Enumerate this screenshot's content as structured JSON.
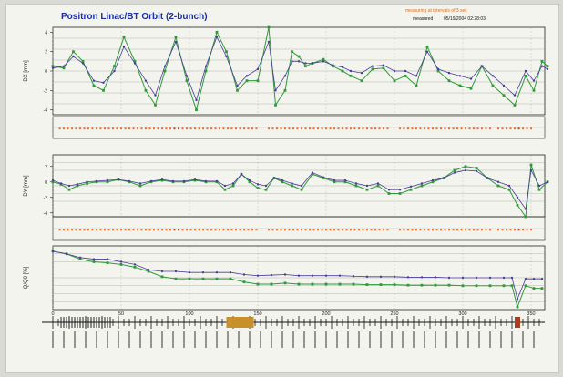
{
  "header": {
    "title": "Positron  Linac/BT  Orbit  (2-bunch)",
    "note": "measuring at intervals of 3 sec",
    "measured_label": "measured",
    "timestamp": "05/19/2004 02:28:03"
  },
  "colors": {
    "series_a": "#2e9a3a",
    "series_b": "#4a3d9a",
    "status": "#f07030",
    "status_alt": "#c84020",
    "grid": "#9a9a9a",
    "axis": "#222222"
  },
  "chart_data": [
    {
      "type": "line",
      "panel": "dx",
      "ylabel": "DX [mm]",
      "ylim": [
        -4.5,
        4.5
      ],
      "yticks": [
        -4,
        -2,
        0,
        2,
        4
      ],
      "xlim": [
        0,
        360
      ],
      "grid": true,
      "series": [
        {
          "color": "green",
          "x": [
            0,
            8,
            15,
            22,
            30,
            37,
            45,
            52,
            60,
            68,
            75,
            82,
            90,
            98,
            105,
            112,
            120,
            127,
            135,
            142,
            150,
            158,
            163,
            170,
            175,
            180,
            185,
            190,
            198,
            205,
            212,
            218,
            226,
            234,
            242,
            250,
            258,
            266,
            274,
            282,
            290,
            298,
            306,
            314,
            322,
            330,
            338,
            346,
            352,
            358,
            362
          ],
          "y": [
            0.5,
            0.3,
            2,
            1,
            -1.5,
            -2,
            0.5,
            3.5,
            1,
            -2,
            -3.5,
            0,
            3.5,
            -1,
            -4,
            0,
            4,
            2,
            -2,
            -1,
            -1,
            4.5,
            -3.5,
            -2,
            2,
            1.5,
            0.5,
            0.8,
            1.2,
            0.5,
            0,
            -0.5,
            -1,
            0.2,
            0.3,
            -1,
            -0.5,
            -1.5,
            2.5,
            0,
            -1,
            -1.5,
            -1.8,
            0.5,
            -1.5,
            -2.5,
            -3.5,
            -0.5,
            -2,
            1,
            0.5
          ]
        },
        {
          "color": "purple",
          "x": [
            0,
            8,
            15,
            22,
            30,
            37,
            45,
            52,
            60,
            68,
            75,
            82,
            90,
            98,
            105,
            112,
            120,
            127,
            135,
            142,
            150,
            158,
            163,
            170,
            175,
            180,
            185,
            190,
            198,
            205,
            212,
            218,
            226,
            234,
            242,
            250,
            258,
            266,
            274,
            282,
            290,
            298,
            306,
            314,
            322,
            330,
            338,
            346,
            352,
            358,
            362
          ],
          "y": [
            0.3,
            0.5,
            1.5,
            0.8,
            -1,
            -1.2,
            0,
            2.5,
            0.8,
            -1,
            -2.5,
            0.5,
            3,
            -0.5,
            -3,
            0.5,
            3.5,
            1.5,
            -1.5,
            -0.5,
            0.2,
            3,
            -2,
            -0.5,
            1,
            1,
            0.8,
            0.8,
            1,
            0.6,
            0.4,
            0,
            -0.2,
            0.5,
            0.6,
            0,
            0,
            -0.5,
            2,
            0.2,
            -0.2,
            -0.5,
            -0.8,
            0.5,
            -0.5,
            -1.5,
            -2.5,
            0,
            -1,
            0.5,
            0.2
          ]
        }
      ]
    },
    {
      "type": "line",
      "panel": "dy",
      "ylabel": "DY [mm]",
      "ylim": [
        -4.5,
        3.5
      ],
      "yticks": [
        -4,
        -2,
        0,
        2
      ],
      "xlim": [
        0,
        360
      ],
      "grid": true,
      "series": [
        {
          "color": "green",
          "x": [
            0,
            6,
            12,
            18,
            25,
            32,
            40,
            48,
            56,
            64,
            72,
            80,
            88,
            96,
            104,
            112,
            120,
            126,
            132,
            138,
            144,
            150,
            156,
            162,
            168,
            175,
            182,
            190,
            198,
            206,
            214,
            222,
            230,
            238,
            246,
            254,
            262,
            270,
            278,
            286,
            294,
            302,
            310,
            318,
            326,
            334,
            340,
            346,
            350,
            356,
            362
          ],
          "y": [
            0,
            -0.3,
            -1,
            -0.5,
            -0.2,
            0,
            0,
            0.3,
            0,
            -0.5,
            0,
            0.2,
            0,
            0,
            0.2,
            0,
            0,
            -1,
            -0.5,
            1,
            0,
            -0.8,
            -1,
            0.5,
            0,
            -0.5,
            -1,
            1,
            0.5,
            0,
            0,
            -0.5,
            -1,
            -0.5,
            -1.5,
            -1.5,
            -1,
            -0.5,
            0,
            0.5,
            1.5,
            2,
            1.8,
            0.5,
            -0.5,
            -1,
            -3,
            -4.5,
            2.2,
            -1,
            0
          ]
        },
        {
          "color": "purple",
          "x": [
            0,
            6,
            12,
            18,
            25,
            32,
            40,
            48,
            56,
            64,
            72,
            80,
            88,
            96,
            104,
            112,
            120,
            126,
            132,
            138,
            144,
            150,
            156,
            162,
            168,
            175,
            182,
            190,
            198,
            206,
            214,
            222,
            230,
            238,
            246,
            254,
            262,
            270,
            278,
            286,
            294,
            302,
            310,
            318,
            326,
            334,
            340,
            346,
            350,
            356,
            362
          ],
          "y": [
            0.2,
            -0.2,
            -0.5,
            -0.3,
            0,
            0.1,
            0.2,
            0.3,
            0.1,
            -0.2,
            0.1,
            0.3,
            0.1,
            0.1,
            0.3,
            0.1,
            0.1,
            -0.5,
            -0.2,
            1,
            0.2,
            -0.3,
            -0.5,
            0.5,
            0.2,
            -0.2,
            -0.5,
            1.2,
            0.6,
            0.2,
            0.2,
            -0.2,
            -0.5,
            -0.2,
            -1,
            -1,
            -0.6,
            -0.2,
            0.2,
            0.5,
            1.2,
            1.5,
            1.4,
            0.5,
            0,
            -0.5,
            -2,
            -3.5,
            1.5,
            -0.5,
            0
          ]
        }
      ]
    },
    {
      "type": "line",
      "panel": "q",
      "ylabel": "Q/Q0 [%]",
      "ylim": [
        0,
        1.2
      ],
      "xlim": [
        0,
        360
      ],
      "grid": true,
      "series": [
        {
          "color": "green",
          "x": [
            0,
            10,
            20,
            30,
            40,
            50,
            60,
            70,
            80,
            90,
            100,
            110,
            120,
            130,
            140,
            150,
            160,
            170,
            180,
            190,
            200,
            210,
            220,
            230,
            240,
            250,
            260,
            270,
            280,
            290,
            300,
            310,
            320,
            330,
            336,
            340,
            346,
            352,
            358
          ],
          "y": [
            1.1,
            1.05,
            0.95,
            0.9,
            0.88,
            0.85,
            0.8,
            0.72,
            0.62,
            0.58,
            0.58,
            0.58,
            0.58,
            0.58,
            0.52,
            0.48,
            0.48,
            0.5,
            0.48,
            0.48,
            0.48,
            0.48,
            0.48,
            0.47,
            0.47,
            0.47,
            0.46,
            0.46,
            0.46,
            0.46,
            0.45,
            0.45,
            0.45,
            0.45,
            0.45,
            0.05,
            0.45,
            0.4,
            0.4
          ]
        },
        {
          "color": "purple",
          "x": [
            0,
            10,
            20,
            30,
            40,
            50,
            60,
            70,
            80,
            90,
            100,
            110,
            120,
            130,
            140,
            150,
            160,
            170,
            180,
            190,
            200,
            210,
            220,
            230,
            240,
            250,
            260,
            270,
            280,
            290,
            300,
            310,
            320,
            330,
            336,
            340,
            346,
            352,
            358
          ],
          "y": [
            1.1,
            1.05,
            0.98,
            0.95,
            0.95,
            0.9,
            0.85,
            0.75,
            0.72,
            0.72,
            0.7,
            0.7,
            0.7,
            0.7,
            0.66,
            0.64,
            0.65,
            0.66,
            0.64,
            0.64,
            0.64,
            0.64,
            0.63,
            0.62,
            0.62,
            0.62,
            0.61,
            0.61,
            0.61,
            0.6,
            0.6,
            0.6,
            0.6,
            0.6,
            0.6,
            0.2,
            0.58,
            0.58,
            0.58
          ]
        }
      ]
    }
  ],
  "xaxis": {
    "ticks": [
      0,
      50,
      100,
      150,
      200,
      250,
      300,
      350
    ]
  }
}
